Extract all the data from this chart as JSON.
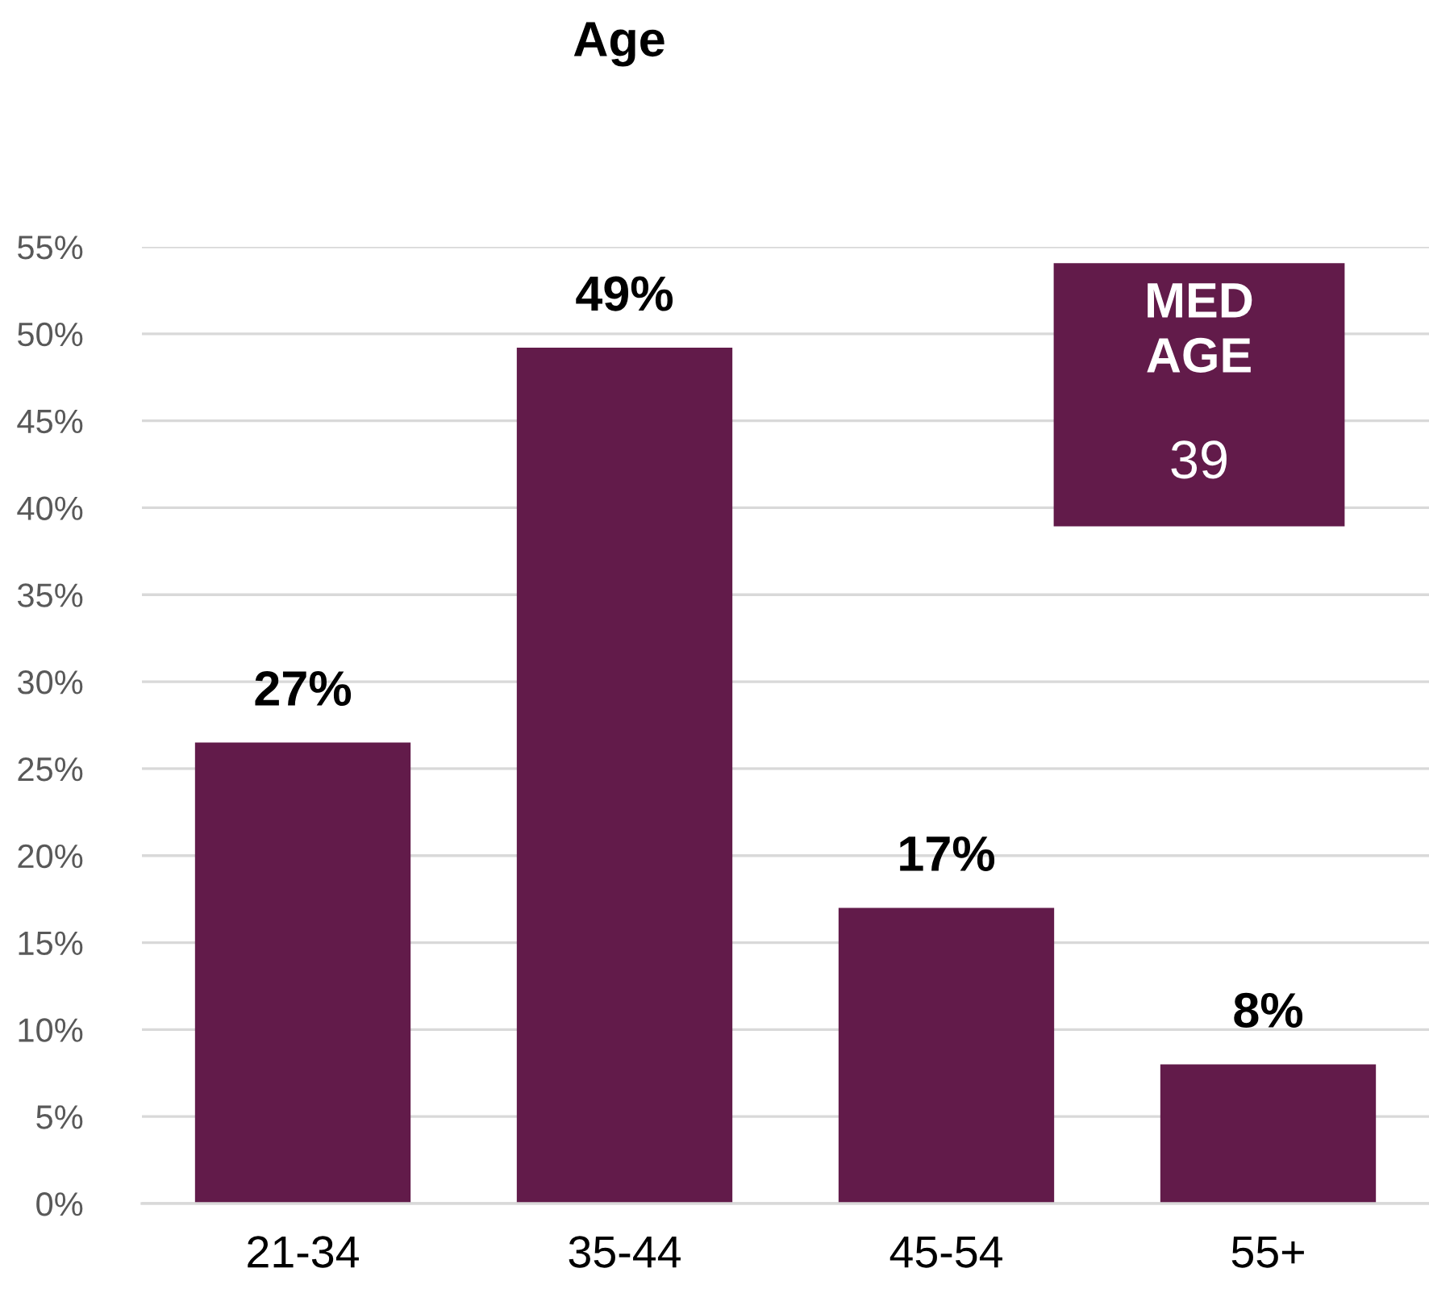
{
  "chart_data": {
    "type": "bar",
    "title": "Age",
    "categories": [
      "21-34",
      "35-44",
      "45-54",
      "55+"
    ],
    "values": [
      26.5,
      49.2,
      17,
      8
    ],
    "value_labels": [
      "27%",
      "49%",
      "17%",
      "8%"
    ],
    "color": "#621b4a",
    "ylim": [
      0,
      55
    ],
    "yticks": [
      {
        "value": 0,
        "label": "0%"
      },
      {
        "value": 5,
        "label": "5%"
      },
      {
        "value": 10,
        "label": "10%"
      },
      {
        "value": 15,
        "label": "15%"
      },
      {
        "value": 20,
        "label": "20%"
      },
      {
        "value": 25,
        "label": "25%"
      },
      {
        "value": 30,
        "label": "30%"
      },
      {
        "value": 35,
        "label": "35%"
      },
      {
        "value": 40,
        "label": "40%"
      },
      {
        "value": 45,
        "label": "45%"
      },
      {
        "value": 50,
        "label": "50%"
      },
      {
        "value": 55,
        "label": "55%"
      }
    ],
    "grid": "y",
    "annotations": [
      "MED\nAGE",
      "39"
    ]
  }
}
